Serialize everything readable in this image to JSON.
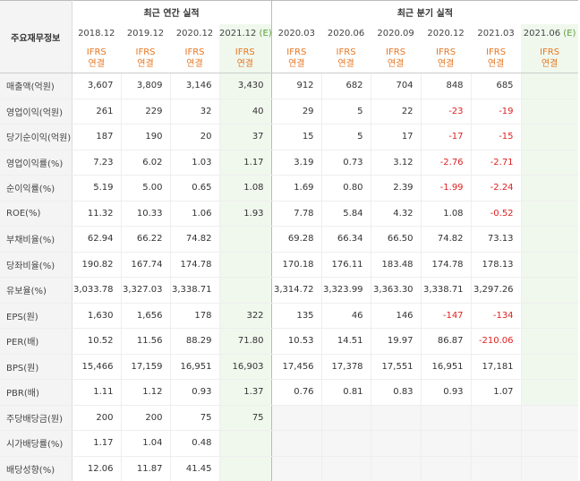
{
  "header": {
    "corner_label": "주요재무정보",
    "annual_group": "최근 연간 실적",
    "quarter_group": "최근 분기 실적",
    "periods": [
      {
        "label": "2018.12",
        "est": ""
      },
      {
        "label": "2019.12",
        "est": ""
      },
      {
        "label": "2020.12",
        "est": ""
      },
      {
        "label": "2021.12",
        "est": "(E)"
      },
      {
        "label": "2020.03",
        "est": ""
      },
      {
        "label": "2020.06",
        "est": ""
      },
      {
        "label": "2020.09",
        "est": ""
      },
      {
        "label": "2020.12",
        "est": ""
      },
      {
        "label": "2021.03",
        "est": ""
      },
      {
        "label": "2021.06",
        "est": "(E)"
      }
    ],
    "ifrs_line1": "IFRS",
    "ifrs_line2": "연결"
  },
  "rows": [
    {
      "label": "매출액(억원)",
      "values": [
        "3,607",
        "3,809",
        "3,146",
        "3,430",
        "912",
        "682",
        "704",
        "848",
        "685",
        ""
      ]
    },
    {
      "label": "영업이익(억원)",
      "values": [
        "261",
        "229",
        "32",
        "40",
        "29",
        "5",
        "22",
        "-23",
        "-19",
        ""
      ]
    },
    {
      "label": "당기순이익(억원)",
      "values": [
        "187",
        "190",
        "20",
        "37",
        "15",
        "5",
        "17",
        "-17",
        "-15",
        ""
      ]
    },
    {
      "label": "영업이익률(%)",
      "values": [
        "7.23",
        "6.02",
        "1.03",
        "1.17",
        "3.19",
        "0.73",
        "3.12",
        "-2.76",
        "-2.71",
        ""
      ]
    },
    {
      "label": "순이익률(%)",
      "values": [
        "5.19",
        "5.00",
        "0.65",
        "1.08",
        "1.69",
        "0.80",
        "2.39",
        "-1.99",
        "-2.24",
        ""
      ]
    },
    {
      "label": "ROE(%)",
      "values": [
        "11.32",
        "10.33",
        "1.06",
        "1.93",
        "7.78",
        "5.84",
        "4.32",
        "1.08",
        "-0.52",
        ""
      ]
    },
    {
      "label": "부채비율(%)",
      "values": [
        "62.94",
        "66.22",
        "74.82",
        "",
        "69.28",
        "66.34",
        "66.50",
        "74.82",
        "73.13",
        ""
      ]
    },
    {
      "label": "당좌비율(%)",
      "values": [
        "190.82",
        "167.74",
        "174.78",
        "",
        "170.18",
        "176.11",
        "183.48",
        "174.78",
        "178.13",
        ""
      ]
    },
    {
      "label": "유보율(%)",
      "values": [
        "3,033.78",
        "3,327.03",
        "3,338.71",
        "",
        "3,314.72",
        "3,323.99",
        "3,363.30",
        "3,338.71",
        "3,297.26",
        ""
      ]
    },
    {
      "label": "EPS(원)",
      "values": [
        "1,630",
        "1,656",
        "178",
        "322",
        "135",
        "46",
        "146",
        "-147",
        "-134",
        ""
      ]
    },
    {
      "label": "PER(배)",
      "values": [
        "10.52",
        "11.56",
        "88.29",
        "71.80",
        "10.53",
        "14.51",
        "19.97",
        "86.87",
        "-210.06",
        ""
      ]
    },
    {
      "label": "BPS(원)",
      "values": [
        "15,466",
        "17,159",
        "16,951",
        "16,903",
        "17,456",
        "17,378",
        "17,551",
        "16,951",
        "17,181",
        ""
      ]
    },
    {
      "label": "PBR(배)",
      "values": [
        "1.11",
        "1.12",
        "0.93",
        "1.37",
        "0.76",
        "0.81",
        "0.83",
        "0.93",
        "1.07",
        ""
      ]
    },
    {
      "label": "주당배당금(원)",
      "values": [
        "200",
        "200",
        "75",
        "75",
        "",
        "",
        "",
        "",
        "",
        ""
      ]
    },
    {
      "label": "시가배당률(%)",
      "values": [
        "1.17",
        "1.04",
        "0.48",
        "",
        "",
        "",
        "",
        "",
        "",
        ""
      ]
    },
    {
      "label": "배당성향(%)",
      "values": [
        "12.06",
        "11.87",
        "41.45",
        "",
        "",
        "",
        "",
        "",
        "",
        ""
      ]
    }
  ],
  "group_starts": [
    0,
    3,
    6,
    9,
    13
  ],
  "colors": {
    "ifrs": "#e87722",
    "negative": "#e02020",
    "estimate_bg": "#f0f8ee",
    "estimate_text": "#5a9e3a"
  }
}
